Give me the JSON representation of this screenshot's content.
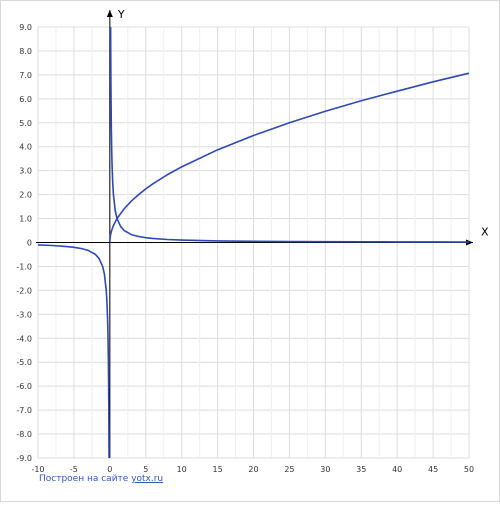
{
  "chart_data": {
    "type": "line",
    "xlabel": "X",
    "ylabel": "Y",
    "xlim": [
      -10,
      50
    ],
    "ylim": [
      -9,
      9
    ],
    "x_ticks": [
      -10,
      -5,
      0,
      5,
      10,
      15,
      20,
      25,
      30,
      35,
      40,
      45,
      50
    ],
    "y_ticks": [
      9,
      8,
      7,
      6,
      5,
      4,
      3,
      2,
      1,
      0,
      -1,
      -2,
      -3,
      -4,
      -5,
      -6,
      -7,
      -8,
      -9
    ],
    "x_tick_labels": [
      "-10",
      "-5",
      "0",
      "5",
      "10",
      "15",
      "20",
      "25",
      "30",
      "35",
      "40",
      "45",
      "50"
    ],
    "y_tick_labels": [
      "9.0",
      "8.0",
      "7.0",
      "6.0",
      "5.0",
      "4.0",
      "3.0",
      "2.0",
      "1.0",
      "0",
      "-1.0",
      "-2.0",
      "-3.0",
      "-4.0",
      "-5.0",
      "-6.0",
      "-7.0",
      "-8.0",
      "-9.0"
    ],
    "grid": true,
    "series": [
      {
        "color": "#2e48b6",
        "x": [
          0,
          0.01,
          0.05,
          0.1,
          0.25,
          0.5,
          1,
          2,
          3,
          4,
          5,
          6,
          8,
          10,
          15,
          20,
          25,
          30,
          35,
          40,
          45,
          50
        ],
        "y": [
          0,
          0.1,
          0.22,
          0.32,
          0.5,
          0.71,
          1,
          1.41,
          1.73,
          2,
          2.24,
          2.45,
          2.83,
          3.16,
          3.87,
          4.47,
          5,
          5.48,
          5.92,
          6.32,
          6.71,
          7.07
        ]
      },
      {
        "color": "#2e48b6",
        "x": [
          -10,
          -8,
          -6,
          -5,
          -4,
          -3,
          -2,
          -1.5,
          -1,
          -0.75,
          -0.5,
          -0.4,
          -0.3,
          -0.25,
          -0.2,
          -0.15,
          -0.125,
          -0.111
        ],
        "y": [
          -0.1,
          -0.125,
          -0.17,
          -0.2,
          -0.25,
          -0.33,
          -0.5,
          -0.67,
          -1,
          -1.33,
          -2,
          -2.5,
          -3.33,
          -4,
          -5,
          -6.67,
          -8,
          -9
        ]
      },
      {
        "color": "#2e48b6",
        "x": [
          0.111,
          0.125,
          0.15,
          0.2,
          0.25,
          0.3,
          0.4,
          0.5,
          0.75,
          1,
          1.5,
          2,
          3,
          4,
          5,
          6,
          8,
          10,
          15,
          20,
          25,
          30,
          35,
          40,
          45,
          50
        ],
        "y": [
          9,
          8,
          6.67,
          5,
          4,
          3.33,
          2.5,
          2,
          1.33,
          1,
          0.67,
          0.5,
          0.33,
          0.25,
          0.2,
          0.17,
          0.125,
          0.1,
          0.067,
          0.05,
          0.04,
          0.033,
          0.029,
          0.025,
          0.022,
          0.02
        ]
      }
    ]
  },
  "footer": {
    "prefix": "Построен на сайте ",
    "link_text": "yotx.ru"
  }
}
